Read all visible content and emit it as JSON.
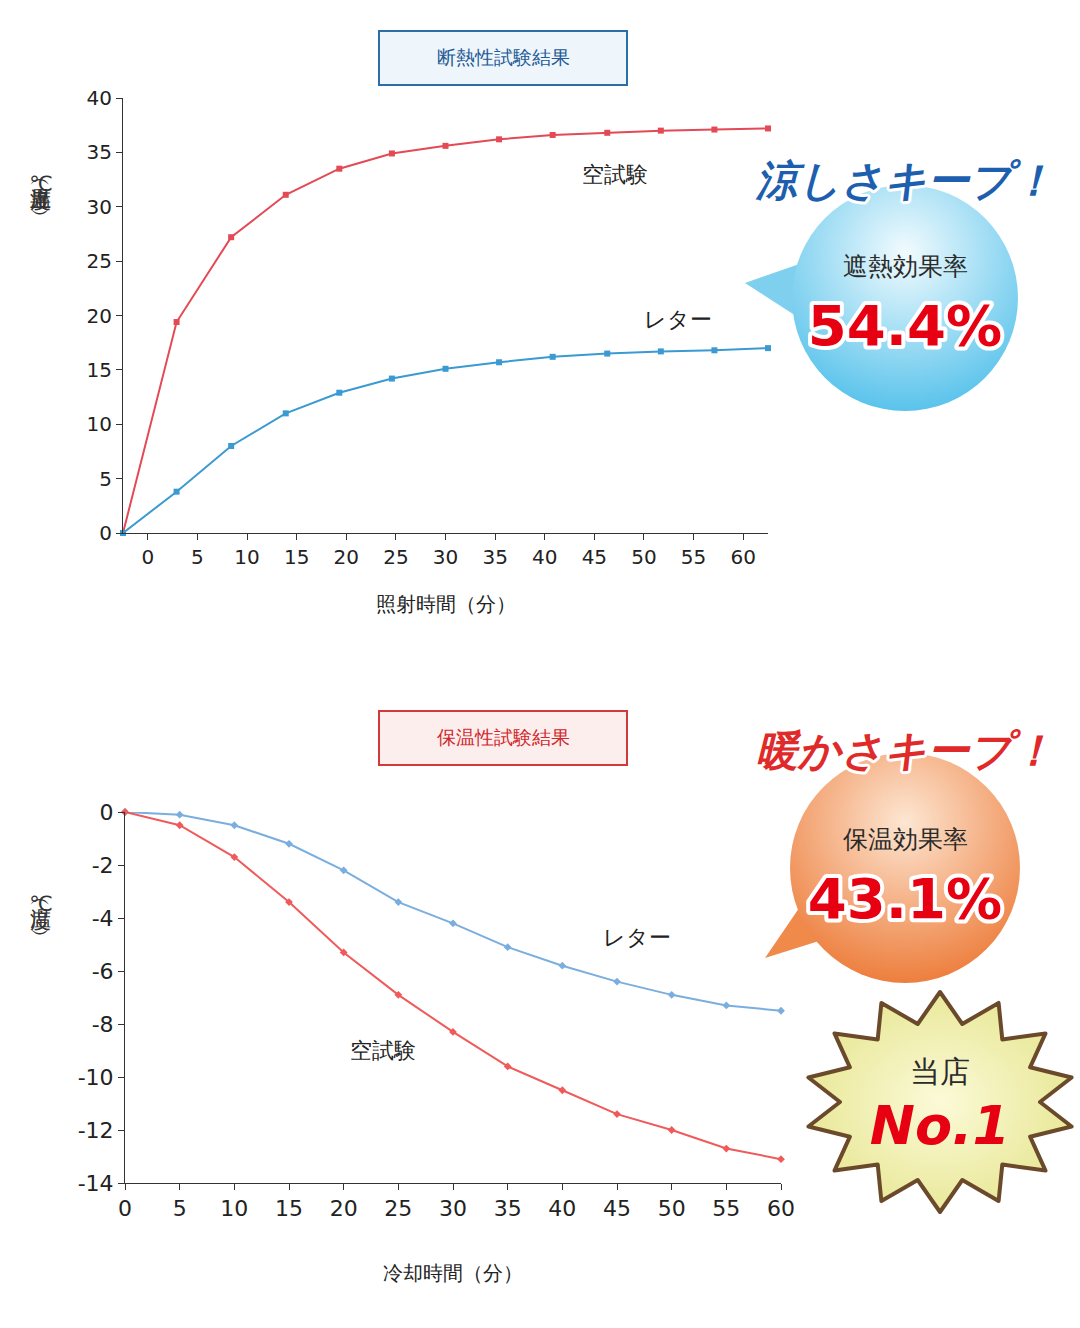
{
  "chart_data": [
    {
      "type": "line",
      "title": "断熱性試験結果",
      "x_label": "照射時間（分）",
      "y_label": "上昇温度（℃）",
      "x": [
        -2.5,
        2.9,
        8.4,
        13.9,
        19.3,
        24.6,
        30.0,
        35.4,
        40.8,
        46.3,
        51.7,
        57.1,
        62.5
      ],
      "series": [
        {
          "name": "空試験",
          "color": "#e34a55",
          "marker": "square",
          "values": [
            0,
            19.4,
            27.2,
            31.1,
            33.5,
            34.9,
            35.6,
            36.2,
            36.6,
            36.8,
            37.0,
            37.1,
            37.2
          ]
        },
        {
          "name": "レター",
          "color": "#3a9ad1",
          "marker": "square",
          "values": [
            0,
            3.8,
            8.0,
            11.0,
            12.9,
            14.2,
            15.1,
            15.7,
            16.2,
            16.5,
            16.7,
            16.8,
            17.0
          ]
        }
      ],
      "xlim": [
        -2.5,
        62.5
      ],
      "xticks": [
        0,
        5,
        10,
        15,
        20,
        25,
        30,
        35,
        40,
        45,
        50,
        55,
        60
      ],
      "ylim": [
        0,
        40
      ],
      "yticks": [
        0,
        5,
        10,
        15,
        20,
        25,
        30,
        35,
        40
      ],
      "grid": false
    },
    {
      "type": "line",
      "title": "保温性試験結果",
      "x_label": "冷却時間（分）",
      "y_label": "温度（℃）",
      "x": [
        0,
        5,
        10,
        15,
        20,
        25,
        30,
        35,
        40,
        45,
        50,
        55,
        60
      ],
      "series": [
        {
          "name": "レター",
          "color": "#7aaede",
          "marker": "diamond",
          "values": [
            0,
            -0.1,
            -0.5,
            -1.2,
            -2.2,
            -3.4,
            -4.2,
            -5.1,
            -5.8,
            -6.4,
            -6.9,
            -7.3,
            -7.5
          ]
        },
        {
          "name": "空試験",
          "color": "#f05a5a",
          "marker": "diamond",
          "values": [
            0,
            -0.5,
            -1.7,
            -3.4,
            -5.3,
            -6.9,
            -8.3,
            -9.6,
            -10.5,
            -11.4,
            -12.0,
            -12.7,
            -13.1
          ]
        }
      ],
      "xlim": [
        0,
        60
      ],
      "xticks": [
        0,
        5,
        10,
        15,
        20,
        25,
        30,
        35,
        40,
        45,
        50,
        55,
        60
      ],
      "ylim": [
        -14,
        0
      ],
      "yticks": [
        -14,
        -12,
        -10,
        -8,
        -6,
        -4,
        -2,
        0
      ],
      "grid": false
    }
  ],
  "callouts": [
    {
      "headline": "涼しさキープ！",
      "label": "遮熱効果率",
      "value": "54.4%",
      "color": "#1d5fae"
    },
    {
      "headline": "暖かさキープ！",
      "label": "保温効果率",
      "value": "43.1%",
      "color": "#e02a2a"
    }
  ],
  "badge": {
    "line1": "当店",
    "line2": "No.1"
  }
}
